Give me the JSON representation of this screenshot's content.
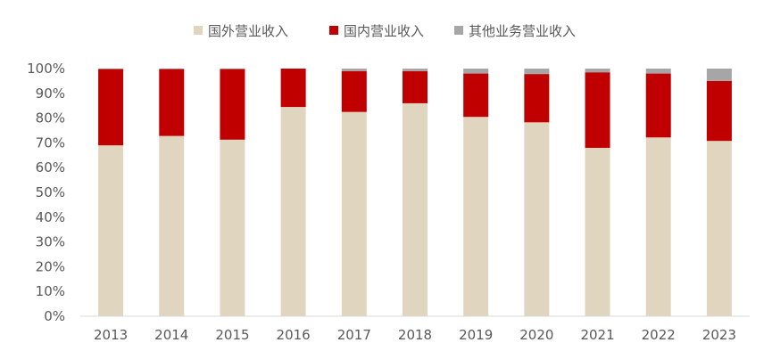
{
  "chart_data": {
    "type": "bar",
    "stacked": true,
    "categories": [
      "2013",
      "2014",
      "2015",
      "2016",
      "2017",
      "2018",
      "2019",
      "2020",
      "2021",
      "2022",
      "2023"
    ],
    "series": [
      {
        "name": "国外营业收入",
        "color": "#e0d6bf",
        "values": [
          69.0,
          72.8,
          71.3,
          84.5,
          82.5,
          86.0,
          80.5,
          78.3,
          68.0,
          72.2,
          70.8
        ]
      },
      {
        "name": "国内营业收入",
        "color": "#c00000",
        "values": [
          30.8,
          27.0,
          28.5,
          15.5,
          16.5,
          13.0,
          17.5,
          19.5,
          30.5,
          25.8,
          24.2
        ]
      },
      {
        "name": "其他业务营业收入",
        "color": "#a6a6a6",
        "values": [
          0.2,
          0.2,
          0.2,
          0.0,
          1.0,
          1.0,
          2.0,
          2.2,
          1.5,
          2.0,
          5.0
        ]
      }
    ],
    "yticks": [
      "0%",
      "10%",
      "20%",
      "30%",
      "40%",
      "50%",
      "60%",
      "70%",
      "80%",
      "90%",
      "100%"
    ],
    "ylim": [
      0,
      100
    ],
    "legend_position": "top-center",
    "grid": false
  }
}
